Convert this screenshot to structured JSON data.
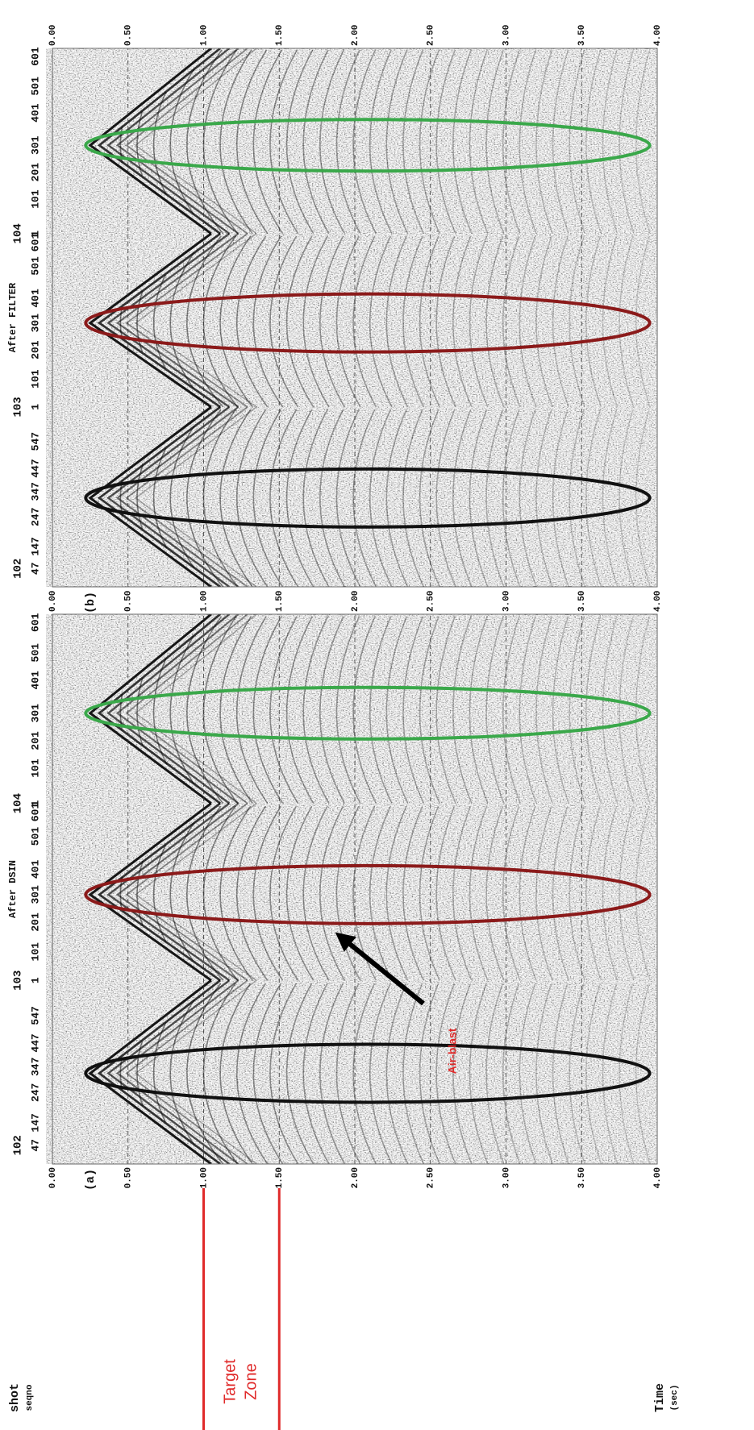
{
  "panels": [
    {
      "tag": "(a)",
      "title": "After DSIN",
      "gathers": [
        "102",
        "103",
        "104"
      ],
      "shots": [
        "47",
        "147",
        "247",
        "347",
        "447",
        "547",
        "1",
        "101",
        "201",
        "301",
        "401",
        "501",
        "601",
        "1",
        "101",
        "201",
        "301",
        "401",
        "501",
        "601"
      ]
    },
    {
      "tag": "(b)",
      "title": "After FILTER",
      "gathers": [
        "102",
        "103",
        "104"
      ],
      "shots": [
        "47",
        "147",
        "247",
        "347",
        "447",
        "547",
        "1",
        "101",
        "201",
        "301",
        "401",
        "501",
        "601",
        "1",
        "101",
        "201",
        "301",
        "401",
        "501",
        "601"
      ]
    }
  ],
  "time_axis": {
    "label": [
      "Time",
      "(sec)"
    ],
    "ticks": [
      {
        "value": 0,
        "label": "0.00"
      },
      {
        "value": 0.5,
        "label": "0.50"
      },
      {
        "value": 1,
        "label": "1.00"
      },
      {
        "value": 1.5,
        "label": "1.50"
      },
      {
        "value": 2,
        "label": "2.00"
      },
      {
        "value": 2.5,
        "label": "2.50"
      },
      {
        "value": 3,
        "label": "3.00"
      },
      {
        "value": 3.5,
        "label": "3.50"
      },
      {
        "value": 4,
        "label": "4.00"
      }
    ]
  },
  "shot_axis_label": [
    "shot",
    "seqno"
  ],
  "target_zone": {
    "label": [
      "Target",
      "Zone"
    ],
    "from": 1,
    "to": 1.5
  },
  "annotation": "Air-blast"
}
